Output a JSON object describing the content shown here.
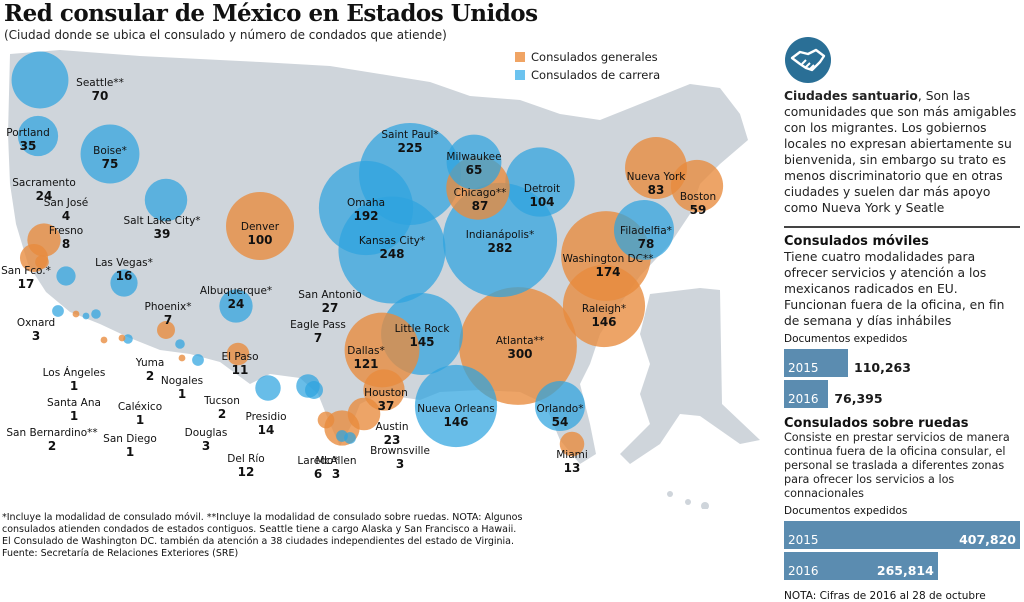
{
  "header": {
    "title": "Red consular de México en Estados Unidos",
    "subtitle": "(Ciudad donde se ubica el consulado y número de condados que atiende)"
  },
  "legend": {
    "items": [
      {
        "label": "Consulados generales",
        "color": "#f0a464"
      },
      {
        "label": "Consulados de carrera",
        "color": "#6cc3ef"
      }
    ]
  },
  "colors": {
    "general": "#e88a3c",
    "carrera": "#2ea3df",
    "land": "#cfd5db",
    "bar": "#5b8cb0",
    "icon": "#2a6f96"
  },
  "chart_data": {
    "type": "bubble-map",
    "title": "Red consular de México en Estados Unidos",
    "size_measure": "número de condados que atiende",
    "consulates": [
      {
        "city": "Seattle**",
        "counties": 70,
        "type": "carrera"
      },
      {
        "city": "Portland",
        "counties": 35,
        "type": "carrera"
      },
      {
        "city": "Boise*",
        "counties": 75,
        "type": "carrera"
      },
      {
        "city": "Sacramento",
        "counties": 24,
        "type": "general"
      },
      {
        "city": "San José",
        "counties": 4,
        "type": "general"
      },
      {
        "city": "Fresno",
        "counties": 8,
        "type": "carrera"
      },
      {
        "city": "San Fco.*",
        "counties": 17,
        "type": "general"
      },
      {
        "city": "Salt Lake City*",
        "counties": 39,
        "type": "carrera"
      },
      {
        "city": "Las Vegas*",
        "counties": 16,
        "type": "carrera"
      },
      {
        "city": "Oxnard",
        "counties": 3,
        "type": "carrera"
      },
      {
        "city": "Los Ángeles",
        "counties": 1,
        "type": "general"
      },
      {
        "city": "Santa Ana",
        "counties": 1,
        "type": "carrera"
      },
      {
        "city": "San Bernardino**",
        "counties": 2,
        "type": "carrera"
      },
      {
        "city": "San Diego",
        "counties": 1,
        "type": "general"
      },
      {
        "city": "Caléxico",
        "counties": 1,
        "type": "general"
      },
      {
        "city": "Yuma",
        "counties": 2,
        "type": "carrera"
      },
      {
        "city": "Nogales",
        "counties": 1,
        "type": "general"
      },
      {
        "city": "Tucson",
        "counties": 2,
        "type": "carrera"
      },
      {
        "city": "Douglas",
        "counties": 3,
        "type": "carrera"
      },
      {
        "city": "Phoenix*",
        "counties": 7,
        "type": "general"
      },
      {
        "city": "Denver",
        "counties": 100,
        "type": "general"
      },
      {
        "city": "Albuquerque*",
        "counties": 24,
        "type": "carrera"
      },
      {
        "city": "El Paso",
        "counties": 11,
        "type": "general"
      },
      {
        "city": "Presidio",
        "counties": 14,
        "type": "carrera"
      },
      {
        "city": "Del Río",
        "counties": 12,
        "type": "carrera"
      },
      {
        "city": "Eagle Pass",
        "counties": 7,
        "type": "carrera"
      },
      {
        "city": "Laredo*",
        "counties": 6,
        "type": "general"
      },
      {
        "city": "McAllen",
        "counties": 3,
        "type": "carrera"
      },
      {
        "city": "Brownsville",
        "counties": 3,
        "type": "carrera"
      },
      {
        "city": "San Antonio",
        "counties": 27,
        "type": "general"
      },
      {
        "city": "Austin",
        "counties": 23,
        "type": "general"
      },
      {
        "city": "Dallas*",
        "counties": 121,
        "type": "general"
      },
      {
        "city": "Houston",
        "counties": 37,
        "type": "general"
      },
      {
        "city": "Saint Paul*",
        "counties": 225,
        "type": "carrera"
      },
      {
        "city": "Omaha",
        "counties": 192,
        "type": "carrera"
      },
      {
        "city": "Kansas City*",
        "counties": 248,
        "type": "carrera"
      },
      {
        "city": "Milwaukee",
        "counties": 65,
        "type": "carrera"
      },
      {
        "city": "Chicago**",
        "counties": 87,
        "type": "general"
      },
      {
        "city": "Detroit",
        "counties": 104,
        "type": "carrera"
      },
      {
        "city": "Indianápolis*",
        "counties": 282,
        "type": "carrera"
      },
      {
        "city": "Little Rock",
        "counties": 145,
        "type": "carrera"
      },
      {
        "city": "Nueva Orleans",
        "counties": 146,
        "type": "carrera"
      },
      {
        "city": "Atlanta**",
        "counties": 300,
        "type": "general"
      },
      {
        "city": "Orlando*",
        "counties": 54,
        "type": "carrera"
      },
      {
        "city": "Miami",
        "counties": 13,
        "type": "general"
      },
      {
        "city": "Raleigh*",
        "counties": 146,
        "type": "general"
      },
      {
        "city": "Washington DC**",
        "counties": 174,
        "type": "general"
      },
      {
        "city": "Filadelfia*",
        "counties": 78,
        "type": "carrera"
      },
      {
        "city": "Nueva York",
        "counties": 83,
        "type": "general"
      },
      {
        "city": "Boston",
        "counties": 59,
        "type": "general"
      }
    ]
  },
  "sidebar": {
    "icon": "handshake-icon",
    "santuario": {
      "lead": "Ciudades santuario",
      "text": ", Son las comunidades que son más amigables con los migrantes. Los gobiernos locales no expresan abiertamente su bienvenida, sin embargo su trato es menos discriminatorio que en otras ciudades y suelen dar más apoyo como Nueva York y Seatle"
    },
    "moviles": {
      "title": "Consulados móviles",
      "text": "Tiene cuatro modalidades para ofrecer servicios y atención a los mexicanos radicados en EU. Funcionan fuera de la oficina, en fin de semana y días inhábiles",
      "docs_label": "Documentos expedidos",
      "bars": [
        {
          "year": "2015",
          "value": 110263,
          "label": "110,263"
        },
        {
          "year": "2016",
          "value": 76395,
          "label": "76,395"
        }
      ]
    },
    "ruedas": {
      "title": "Consulados sobre ruedas",
      "text": "Consiste en prestar servicios  de manera continua fuera de la oficina consular, el personal se traslada a diferentes zonas para ofrecer los servicios a los connacionales",
      "docs_label": "Documentos expedidos",
      "bars": [
        {
          "year": "2015",
          "value": 407820,
          "label": "407,820"
        },
        {
          "year": "2016",
          "value": 265814,
          "label": "265,814"
        }
      ]
    },
    "nota": "NOTA: Cifras de 2016 al 28 de octubre"
  },
  "footnotes": [
    "*Incluye la modalidad de consulado móvil. **Incluye la modalidad de consulado sobre ruedas. NOTA: Algunos consulados atienden condados de estados contiguos. Seattle tiene a cargo Alaska y San Francisco a Hawaii.",
    "El Consulado de Washington DC. también da atención a 38 ciudades independientes del estado de Virginia.",
    "Fuente: Secretaría de Relaciones Exteriores (SRE)"
  ]
}
